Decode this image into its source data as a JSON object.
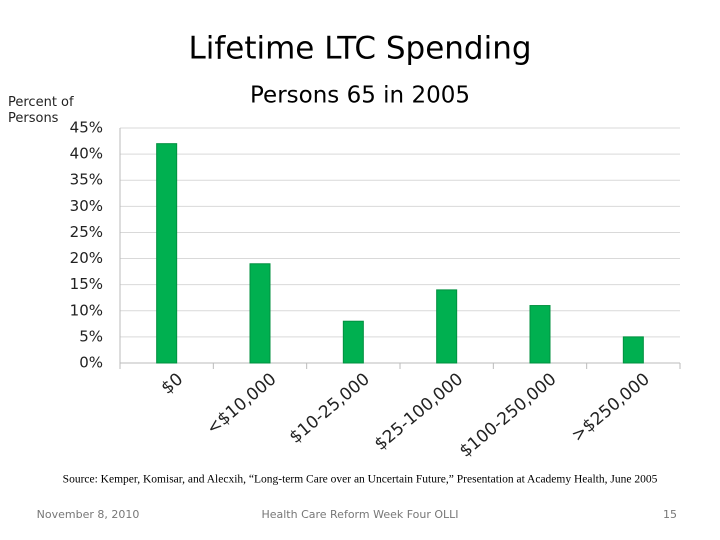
{
  "chart_data": {
    "type": "bar",
    "title": "Lifetime LTC Spending",
    "subtitle": "Persons 65 in 2005",
    "y_label": "Percent of Persons",
    "categories": [
      "$0",
      "<$10,000",
      "$10-25,000",
      "$25-100,000",
      "$100-250,000",
      ">$250,000"
    ],
    "values": [
      42,
      19,
      8,
      14,
      11,
      5
    ],
    "color": "#00b050",
    "ylim": [
      0,
      45
    ],
    "yticks": [
      {
        "value": 0,
        "label": "0%"
      },
      {
        "value": 5,
        "label": "5%"
      },
      {
        "value": 10,
        "label": "10%"
      },
      {
        "value": 15,
        "label": "15%"
      },
      {
        "value": 20,
        "label": "20%"
      },
      {
        "value": 25,
        "label": "25%"
      },
      {
        "value": 30,
        "label": "30%"
      },
      {
        "value": 35,
        "label": "35%"
      },
      {
        "value": 40,
        "label": "40%"
      },
      {
        "value": 45,
        "label": "45%"
      }
    ],
    "grid": true
  },
  "source": "Source: Kemper, Komisar, and Alecxih, “Long-term Care over an Uncertain Future,” Presentation at Academy Health, June 2005",
  "footer": {
    "date": "November 8, 2010",
    "center": "Health Care Reform Week Four OLLI",
    "page": "15"
  }
}
